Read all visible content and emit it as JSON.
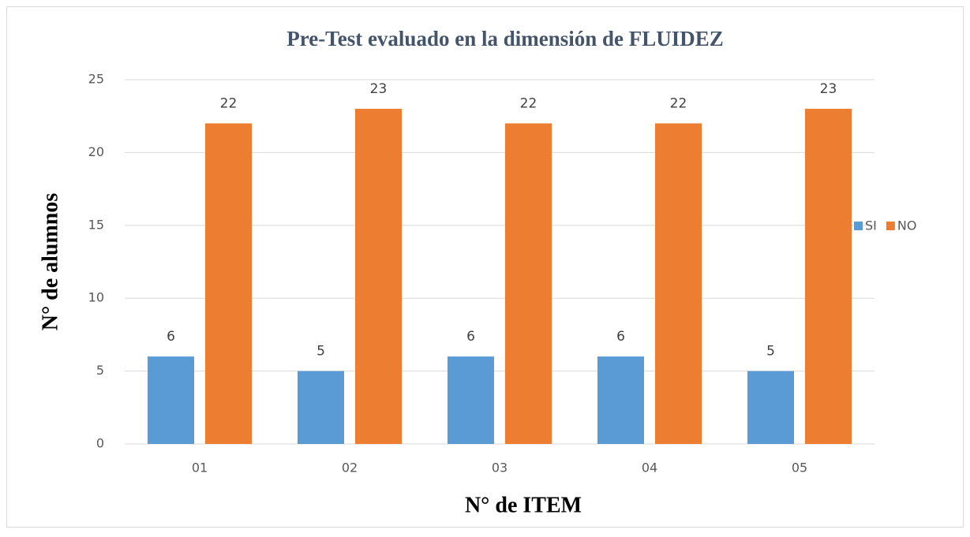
{
  "chart_data": {
    "type": "bar",
    "title": "Pre-Test evaluado en la dimensión de FLUIDEZ",
    "x_label": "N° de ITEM",
    "y_label": "N° de alumnos",
    "categories": [
      "01",
      "02",
      "03",
      "04",
      "05"
    ],
    "series": [
      {
        "name": "SI",
        "color": "#5b9bd5",
        "values": [
          6,
          5,
          6,
          6,
          5
        ]
      },
      {
        "name": "NO",
        "color": "#ed7d31",
        "values": [
          22,
          23,
          22,
          22,
          23
        ]
      }
    ],
    "ylim": [
      0,
      25
    ],
    "yticks": [
      0,
      5,
      10,
      15,
      20,
      25
    ],
    "grid": true,
    "legend": "right"
  }
}
